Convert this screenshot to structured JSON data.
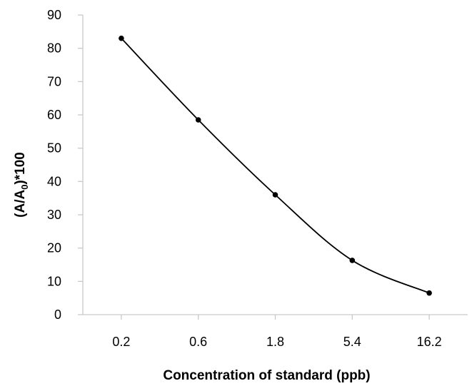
{
  "chart_data": {
    "type": "line",
    "title": "",
    "xlabel": "Concentration of standard (ppb)",
    "ylabel": "(A/A0)*100",
    "ylabel_parts": {
      "prefix": "(A/A",
      "sub": "0",
      "suffix": ")*100"
    },
    "categories": [
      "0.2",
      "0.6",
      "1.8",
      "5.4",
      "16.2"
    ],
    "series": [
      {
        "values": [
          83,
          58.5,
          36,
          16.3,
          6.5
        ]
      }
    ],
    "yticks": [
      "0",
      "10",
      "20",
      "30",
      "40",
      "50",
      "60",
      "70",
      "80",
      "90"
    ],
    "ylim": [
      0,
      90
    ],
    "grid": false,
    "smooth": true,
    "line_color": "#000000",
    "marker_color": "#000000"
  }
}
